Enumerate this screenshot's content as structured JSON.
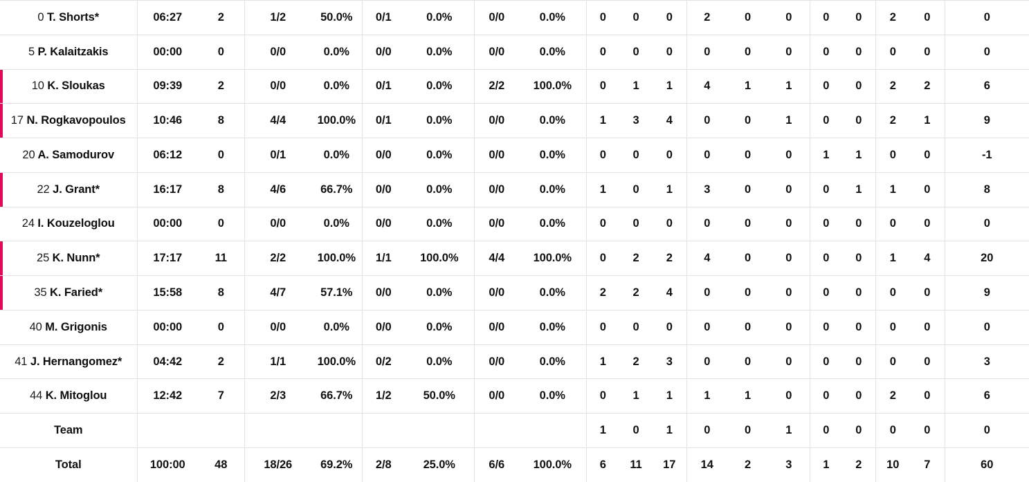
{
  "colors": {
    "on_court_accent": "#e00a5a",
    "grid_line": "#e2e2e2",
    "stat_text": "#101010",
    "muted_label_text": "#636363"
  },
  "table": {
    "rows": [
      {
        "number": "0",
        "name": "T. Shorts*",
        "on_court": false,
        "stats": [
          "06:27",
          "2",
          "1/2",
          "50.0%",
          "0/1",
          "0.0%",
          "0/0",
          "0.0%",
          "0",
          "0",
          "0",
          "2",
          "0",
          "0",
          "0",
          "0",
          "2",
          "0",
          "0"
        ]
      },
      {
        "number": "5",
        "name": "P. Kalaitzakis",
        "on_court": false,
        "stats": [
          "00:00",
          "0",
          "0/0",
          "0.0%",
          "0/0",
          "0.0%",
          "0/0",
          "0.0%",
          "0",
          "0",
          "0",
          "0",
          "0",
          "0",
          "0",
          "0",
          "0",
          "0",
          "0"
        ]
      },
      {
        "number": "10",
        "name": "K. Sloukas",
        "on_court": true,
        "stats": [
          "09:39",
          "2",
          "0/0",
          "0.0%",
          "0/1",
          "0.0%",
          "2/2",
          "100.0%",
          "0",
          "1",
          "1",
          "4",
          "1",
          "1",
          "0",
          "0",
          "2",
          "2",
          "6"
        ]
      },
      {
        "number": "17",
        "name": "N. Rogkavopoulos",
        "on_court": true,
        "stats": [
          "10:46",
          "8",
          "4/4",
          "100.0%",
          "0/1",
          "0.0%",
          "0/0",
          "0.0%",
          "1",
          "3",
          "4",
          "0",
          "0",
          "1",
          "0",
          "0",
          "2",
          "1",
          "9"
        ]
      },
      {
        "number": "20",
        "name": "A. Samodurov",
        "on_court": false,
        "stats": [
          "06:12",
          "0",
          "0/1",
          "0.0%",
          "0/0",
          "0.0%",
          "0/0",
          "0.0%",
          "0",
          "0",
          "0",
          "0",
          "0",
          "0",
          "1",
          "1",
          "0",
          "0",
          "-1"
        ]
      },
      {
        "number": "22",
        "name": "J. Grant*",
        "on_court": true,
        "stats": [
          "16:17",
          "8",
          "4/6",
          "66.7%",
          "0/0",
          "0.0%",
          "0/0",
          "0.0%",
          "1",
          "0",
          "1",
          "3",
          "0",
          "0",
          "0",
          "1",
          "1",
          "0",
          "8"
        ]
      },
      {
        "number": "24",
        "name": "I. Kouzeloglou",
        "on_court": false,
        "stats": [
          "00:00",
          "0",
          "0/0",
          "0.0%",
          "0/0",
          "0.0%",
          "0/0",
          "0.0%",
          "0",
          "0",
          "0",
          "0",
          "0",
          "0",
          "0",
          "0",
          "0",
          "0",
          "0"
        ]
      },
      {
        "number": "25",
        "name": "K. Nunn*",
        "on_court": true,
        "stats": [
          "17:17",
          "11",
          "2/2",
          "100.0%",
          "1/1",
          "100.0%",
          "4/4",
          "100.0%",
          "0",
          "2",
          "2",
          "4",
          "0",
          "0",
          "0",
          "0",
          "1",
          "4",
          "20"
        ]
      },
      {
        "number": "35",
        "name": "K. Faried*",
        "on_court": true,
        "stats": [
          "15:58",
          "8",
          "4/7",
          "57.1%",
          "0/0",
          "0.0%",
          "0/0",
          "0.0%",
          "2",
          "2",
          "4",
          "0",
          "0",
          "0",
          "0",
          "0",
          "0",
          "0",
          "9"
        ]
      },
      {
        "number": "40",
        "name": "M. Grigonis",
        "on_court": false,
        "stats": [
          "00:00",
          "0",
          "0/0",
          "0.0%",
          "0/0",
          "0.0%",
          "0/0",
          "0.0%",
          "0",
          "0",
          "0",
          "0",
          "0",
          "0",
          "0",
          "0",
          "0",
          "0",
          "0"
        ]
      },
      {
        "number": "41",
        "name": "J. Hernangomez*",
        "on_court": false,
        "stats": [
          "04:42",
          "2",
          "1/1",
          "100.0%",
          "0/2",
          "0.0%",
          "0/0",
          "0.0%",
          "1",
          "2",
          "3",
          "0",
          "0",
          "0",
          "0",
          "0",
          "0",
          "0",
          "3"
        ]
      },
      {
        "number": "44",
        "name": "K. Mitoglou",
        "on_court": false,
        "stats": [
          "12:42",
          "7",
          "2/3",
          "66.7%",
          "1/2",
          "50.0%",
          "0/0",
          "0.0%",
          "0",
          "1",
          "1",
          "1",
          "1",
          "0",
          "0",
          "0",
          "2",
          "0",
          "6"
        ]
      }
    ],
    "team_row": {
      "label": "Team",
      "stats": [
        "",
        "",
        "",
        "",
        "",
        "",
        "",
        "",
        "1",
        "0",
        "1",
        "0",
        "0",
        "1",
        "0",
        "0",
        "0",
        "0",
        "0"
      ]
    },
    "total_row": {
      "label": "Total",
      "stats": [
        "100:00",
        "48",
        "18/26",
        "69.2%",
        "2/8",
        "25.0%",
        "6/6",
        "100.0%",
        "6",
        "11",
        "17",
        "14",
        "2",
        "3",
        "1",
        "2",
        "10",
        "7",
        "60"
      ]
    }
  }
}
